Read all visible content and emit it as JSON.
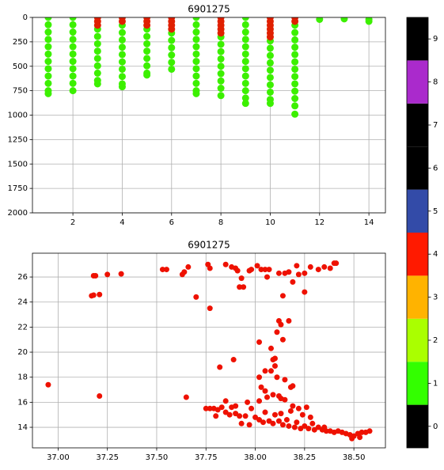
{
  "chart_data": [
    {
      "type": "scatter",
      "title": "6901275",
      "xlim": [
        0.36,
        14.67
      ],
      "ylim": [
        2000,
        0
      ],
      "xticks": [
        2,
        4,
        6,
        8,
        10,
        12,
        14
      ],
      "yticks": [
        0,
        250,
        500,
        750,
        1000,
        1250,
        1500,
        1750,
        2000
      ],
      "grid": true,
      "series": [
        {
          "color": "#3cf000",
          "x": [
            1,
            1,
            1,
            1,
            1,
            1,
            1,
            1,
            1,
            1,
            1,
            1,
            2,
            2,
            2,
            2,
            2,
            2,
            2,
            2,
            2,
            2,
            2,
            3,
            3,
            3,
            3,
            3,
            3,
            3,
            3,
            3,
            4,
            4,
            4,
            4,
            4,
            4,
            4,
            4,
            4,
            4,
            5,
            5,
            5,
            5,
            5,
            5,
            5,
            5,
            6,
            6,
            6,
            6,
            6,
            6,
            7,
            7,
            7,
            7,
            7,
            7,
            7,
            7,
            7,
            7,
            7,
            7,
            8,
            8,
            8,
            8,
            8,
            8,
            8,
            8,
            8,
            9,
            9,
            9,
            9,
            9,
            9,
            9,
            9,
            9,
            9,
            9,
            9,
            9,
            10,
            10,
            10,
            10,
            10,
            10,
            10,
            10,
            10,
            10,
            11,
            11,
            11,
            11,
            11,
            11,
            11,
            11,
            11,
            11,
            11,
            11,
            11,
            12,
            13,
            14,
            14
          ],
          "y": [
            0,
            75,
            150,
            225,
            300,
            375,
            450,
            525,
            600,
            675,
            750,
            780,
            0,
            75,
            150,
            225,
            300,
            375,
            450,
            525,
            600,
            675,
            750,
            120,
            195,
            270,
            345,
            420,
            495,
            570,
            645,
            680,
            80,
            155,
            230,
            305,
            380,
            455,
            530,
            605,
            680,
            710,
            120,
            195,
            270,
            345,
            420,
            495,
            570,
            590,
            160,
            235,
            310,
            385,
            460,
            530,
            0,
            75,
            150,
            225,
            300,
            375,
            450,
            525,
            600,
            675,
            750,
            780,
            200,
            275,
            350,
            425,
            500,
            575,
            650,
            725,
            800,
            0,
            75,
            150,
            225,
            300,
            375,
            450,
            525,
            600,
            675,
            750,
            825,
            880,
            240,
            315,
            390,
            465,
            540,
            615,
            690,
            765,
            840,
            880,
            80,
            155,
            230,
            305,
            380,
            455,
            530,
            605,
            680,
            755,
            830,
            905,
            990,
            20,
            15,
            20,
            40
          ]
        },
        {
          "color": "#e02000",
          "x": [
            3,
            3,
            3,
            4,
            4,
            5,
            5,
            5,
            6,
            6,
            6,
            6,
            8,
            8,
            8,
            8,
            8,
            10,
            10,
            10,
            10,
            10,
            10,
            11,
            11
          ],
          "y": [
            0,
            40,
            80,
            0,
            40,
            0,
            40,
            80,
            0,
            40,
            80,
            120,
            0,
            40,
            80,
            120,
            160,
            0,
            40,
            80,
            120,
            160,
            200,
            0,
            40
          ]
        }
      ]
    },
    {
      "type": "scatter",
      "title": "6901275",
      "xlim": [
        36.87,
        38.66
      ],
      "ylim": [
        12.36,
        27.9
      ],
      "xticks": [
        {
          "value": 37,
          "label": "37.00"
        },
        {
          "value": 37.25,
          "label": "37.25"
        },
        {
          "value": 37.5,
          "label": "37.50"
        },
        {
          "value": 37.75,
          "label": "37.75"
        },
        {
          "value": 38,
          "label": "38.00"
        },
        {
          "value": 38.25,
          "label": "38.25"
        },
        {
          "value": 38.5,
          "label": "38.50"
        }
      ],
      "yticks": [
        14,
        16,
        18,
        20,
        22,
        24,
        26
      ],
      "grid": true,
      "series": [
        {
          "color": "#ee1100",
          "x": [
            36.95,
            37.17,
            37.18,
            37.19,
            37.18,
            37.21,
            37.21,
            37.25,
            37.32,
            37.53,
            37.55,
            37.63,
            37.64,
            37.66,
            37.65,
            37.7,
            37.76,
            37.77,
            37.77,
            37.82,
            37.85,
            37.88,
            37.89,
            37.9,
            37.91,
            37.92,
            37.94,
            37.93,
            37.97,
            37.98,
            38.01,
            38.03,
            38.05,
            38.07,
            38.06,
            38.12,
            38.15,
            38.17,
            38.19,
            38.21,
            38.22,
            38.25,
            38.25,
            38.28,
            38.32,
            38.35,
            38.38,
            38.4,
            38.41,
            38.14,
            38.02,
            38.05,
            38.08,
            38.09,
            38.1,
            38.08,
            38.11,
            38.12,
            38.13,
            38.14,
            38.17,
            38.1,
            38.11,
            38.02,
            38.03,
            38.05,
            38.02,
            38.06,
            38.09,
            38.12,
            38.13,
            38.15,
            38.15,
            38.18,
            38.19,
            37.96,
            37.9,
            37.75,
            37.77,
            37.79,
            37.81,
            37.8,
            37.83,
            37.85,
            37.85,
            37.87,
            37.88,
            37.9,
            37.92,
            37.93,
            37.95,
            37.97,
            37.98,
            38.0,
            38.02,
            38.04,
            38.05,
            38.07,
            38.09,
            38.1,
            38.12,
            38.13,
            38.14,
            38.16,
            38.17,
            38.18,
            38.2,
            38.21,
            38.23,
            38.24,
            38.25,
            38.27,
            38.28,
            38.3,
            38.32,
            38.34,
            38.36,
            38.38,
            38.4,
            38.42,
            38.44,
            38.46,
            38.48,
            38.5,
            38.52,
            38.54,
            38.56,
            38.58,
            38.49,
            38.53,
            38.26,
            38.22,
            38.19,
            38.29,
            38.35
          ],
          "y": [
            17.4,
            24.5,
            24.55,
            26.1,
            26.1,
            24.6,
            16.5,
            26.2,
            26.25,
            26.6,
            26.6,
            26.2,
            26.4,
            26.8,
            16.4,
            24.4,
            27.0,
            26.7,
            23.5,
            18.8,
            27.0,
            26.8,
            19.4,
            26.7,
            26.5,
            25.2,
            25.2,
            25.9,
            26.5,
            26.6,
            26.9,
            26.6,
            26.6,
            26.6,
            26.0,
            26.3,
            26.3,
            26.4,
            25.6,
            26.9,
            26.2,
            26.3,
            24.8,
            26.8,
            26.6,
            26.8,
            26.7,
            27.1,
            27.1,
            24.5,
            20.8,
            18.5,
            18.5,
            19.4,
            19.5,
            20.3,
            21.6,
            22.5,
            22.2,
            21.0,
            22.5,
            18.9,
            18.0,
            18.0,
            17.2,
            16.9,
            16.1,
            16.4,
            16.6,
            16.5,
            16.3,
            16.2,
            17.8,
            17.2,
            17.3,
            16.0,
            15.7,
            15.5,
            15.5,
            15.5,
            15.4,
            14.9,
            15.6,
            16.1,
            15.2,
            15.0,
            15.6,
            15.1,
            14.9,
            14.3,
            14.9,
            14.2,
            15.5,
            14.8,
            14.6,
            14.4,
            15.2,
            14.5,
            14.3,
            15.0,
            14.5,
            15.1,
            14.2,
            14.6,
            14.1,
            15.3,
            14.0,
            14.4,
            13.9,
            15.0,
            14.1,
            13.9,
            14.8,
            13.8,
            14.0,
            13.8,
            13.7,
            13.7,
            13.6,
            13.7,
            13.6,
            13.5,
            13.4,
            13.3,
            13.5,
            13.6,
            13.6,
            13.7,
            13.1,
            13.2,
            15.6,
            15.5,
            15.7,
            14.3,
            14.0
          ]
        }
      ]
    },
    {
      "type": "colorbar",
      "clim": [
        -0.5,
        9.5
      ],
      "ticks": [
        0,
        1,
        2,
        3,
        4,
        5,
        6,
        7,
        8,
        9
      ],
      "colors": [
        "#000000",
        "#33ff00",
        "#aaff00",
        "#ffb300",
        "#ff1a00",
        "#334ba8",
        "#000000",
        "#000000",
        "#aa2acc",
        "#000000"
      ]
    }
  ]
}
